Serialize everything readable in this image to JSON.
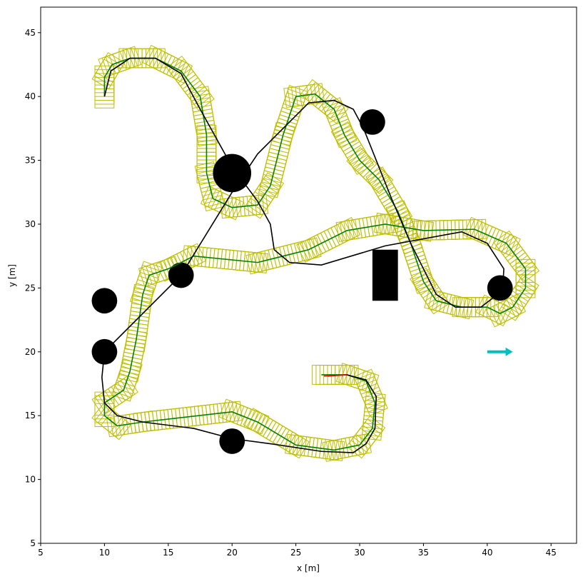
{
  "chart_data": {
    "type": "line",
    "xlabel": "x [m]",
    "ylabel": "y [m]",
    "xlim": [
      5,
      47
    ],
    "ylim": [
      5,
      47
    ],
    "xticks": [
      5,
      10,
      15,
      20,
      25,
      30,
      35,
      40,
      45
    ],
    "yticks": [
      5,
      10,
      15,
      20,
      25,
      30,
      35,
      40,
      45
    ],
    "footprint": {
      "length": 1.8,
      "width": 1.5,
      "step": 0.3,
      "color": "#bfbf00"
    },
    "series": [
      {
        "color": "green",
        "x": [
          10,
          10,
          10.6,
          12,
          14,
          16,
          17.5,
          18,
          18,
          18.5,
          20,
          22,
          23,
          24,
          25,
          26.5,
          28,
          28.8,
          30,
          31.5,
          33,
          34,
          35,
          36,
          38,
          40,
          41,
          42,
          43,
          43,
          41.5,
          39,
          35,
          32,
          29,
          26,
          22,
          17,
          15,
          13.5,
          13,
          12.5,
          12,
          11.5,
          10,
          10,
          11,
          13,
          20,
          22,
          25,
          28,
          30,
          31,
          31.2,
          30.5,
          29,
          27
        ],
        "y": [
          40,
          41.5,
          42.5,
          43,
          43,
          42,
          40,
          37,
          34,
          32,
          31.3,
          31.5,
          33,
          37,
          40,
          40.2,
          39,
          37,
          35,
          33.5,
          31,
          28.5,
          25.5,
          24,
          23.5,
          23.5,
          23,
          23.5,
          25,
          26.5,
          28.5,
          29.6,
          29.5,
          30,
          29.5,
          28,
          27,
          27.5,
          26.5,
          26,
          24.5,
          21,
          18.5,
          17,
          16,
          15,
          14.2,
          14.5,
          15.3,
          14.5,
          12.7,
          12.3,
          12.7,
          14,
          16,
          17.7,
          18.2,
          18.2
        ]
      },
      {
        "color": "black",
        "x": [
          10,
          10.5,
          12,
          14,
          16,
          17.5,
          20,
          22,
          23,
          23.3,
          24.5,
          27,
          32,
          38,
          40,
          41.3,
          41.2,
          39.5,
          37.5,
          36,
          35,
          34,
          32.5,
          31.3,
          30.3,
          29.5,
          28,
          26,
          24.5,
          22,
          20,
          16,
          10,
          9.8,
          10,
          11,
          13,
          17,
          20,
          23,
          27,
          29.5,
          30.5,
          31.2,
          31.3,
          30.5,
          29,
          27.5
        ],
        "y": [
          40,
          42,
          43,
          43,
          41.8,
          39,
          34.5,
          31.8,
          30,
          28,
          27,
          26.8,
          28.3,
          29.4,
          28.5,
          26.5,
          24.8,
          23.5,
          23.5,
          24.5,
          26.5,
          28.5,
          32,
          35,
          37.5,
          39,
          39.7,
          39.5,
          38,
          35.5,
          32.5,
          26,
          20,
          18,
          16,
          15,
          14.5,
          14,
          13.2,
          12.8,
          12.2,
          12.1,
          12.8,
          14,
          16.5,
          17.8,
          18.2,
          18.1
        ]
      },
      {
        "color": "red",
        "x": [
          27.2,
          29
        ],
        "y": [
          18.1,
          18.2
        ]
      }
    ],
    "obstacles": [
      {
        "x": 20,
        "y": 34,
        "r": 1.5
      },
      {
        "x": 31,
        "y": 38,
        "r": 1
      },
      {
        "x": 41,
        "y": 25,
        "r": 1
      },
      {
        "x": 16,
        "y": 26,
        "r": 1
      },
      {
        "x": 10,
        "y": 24,
        "r": 1
      },
      {
        "x": 10,
        "y": 20,
        "r": 1
      },
      {
        "x": 20,
        "y": 13,
        "r": 1
      }
    ],
    "rect_obstacle": {
      "x": [
        31,
        33
      ],
      "y": [
        24,
        28
      ]
    },
    "arrow": {
      "x": [
        40,
        42
      ],
      "y": [
        20,
        20
      ],
      "color": "#00bfbf"
    }
  }
}
